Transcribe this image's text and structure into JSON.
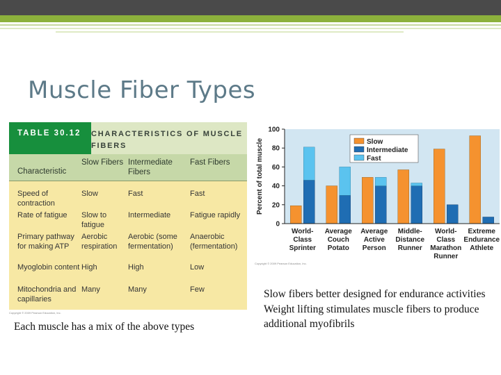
{
  "slide": {
    "title": "Muscle Fiber Types",
    "caption_left": "Each muscle has a mix of the above types",
    "notes": [
      "Slow fibers better designed for endurance activities",
      "Weight lifting stimulates muscle fibers to produce additional myofibrils"
    ]
  },
  "table": {
    "badge": "TABLE 30.12",
    "title": "CHARACTERISTICS OF MUSCLE FIBERS",
    "columns": [
      "Characteristic",
      "Slow Fibers",
      "Intermediate Fibers",
      "Fast Fibers"
    ],
    "rows": [
      [
        "Speed of contraction",
        "Slow",
        "Fast",
        "Fast"
      ],
      [
        "Rate of fatigue",
        "Slow to fatigue",
        "Intermediate",
        "Fatigue rapidly"
      ],
      [
        "Primary pathway for making ATP",
        "Aerobic respiration",
        "Aerobic (some fermentation)",
        "Anaerobic (fermentation)"
      ],
      [
        "Myoglobin content",
        "High",
        "High",
        "Low"
      ],
      [
        "Mitochondria and capillaries",
        "Many",
        "Many",
        "Few"
      ]
    ],
    "copyright": "Copyright © 2009 Pearson Education, Inc."
  },
  "chart_data": {
    "type": "bar",
    "ylabel": "Percent of total muscle",
    "ylim": [
      0,
      100
    ],
    "yticks": [
      0,
      20,
      40,
      60,
      80,
      100
    ],
    "grid": false,
    "legend_placement": "top-left",
    "categories": [
      "World-Class Sprinter",
      "Average Couch Potato",
      "Average Active Person",
      "Middle-Distance Runner",
      "World-Class Marathon Runner",
      "Extreme Endurance Athlete"
    ],
    "category_lines": [
      [
        "World-",
        "Class",
        "Sprinter"
      ],
      [
        "Average",
        "Couch",
        "Potato"
      ],
      [
        "Average",
        "Active",
        "Person"
      ],
      [
        "Middle-",
        "Distance",
        "Runner"
      ],
      [
        "World-",
        "Class",
        "Marathon",
        "Runner"
      ],
      [
        "Extreme",
        "Endurance",
        "Athlete"
      ]
    ],
    "series": [
      {
        "name": "Slow",
        "color": "#f5922f",
        "values": [
          19,
          40,
          49,
          57,
          79,
          93
        ]
      },
      {
        "name": "Intermediate",
        "color": "#1f6db3",
        "values": [
          46,
          30,
          40,
          40,
          20,
          7
        ]
      },
      {
        "name": "Fast",
        "color": "#5bc3ef",
        "values": [
          35,
          30,
          9,
          3,
          0,
          0
        ]
      }
    ],
    "copyright": "Copyright © 2009 Pearson Education, Inc."
  }
}
